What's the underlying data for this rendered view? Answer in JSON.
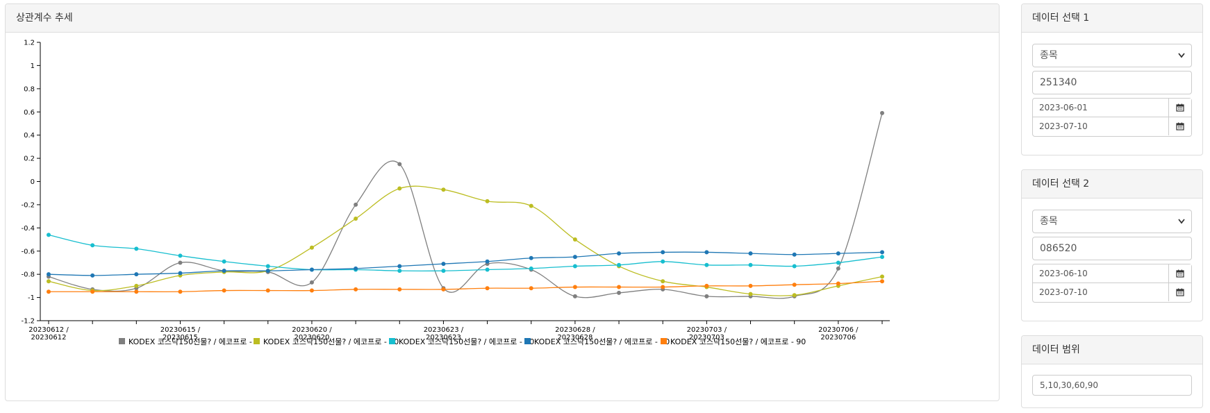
{
  "chart_panel": {
    "title": "상관계수 추세"
  },
  "panel1": {
    "title": "데이터 선택 1",
    "select_value": "종목",
    "code": "251340",
    "date_from": "2023-06-01",
    "date_to": "2023-07-10"
  },
  "panel2": {
    "title": "데이터 선택 2",
    "select_value": "종목",
    "code": "086520",
    "date_from": "2023-06-10",
    "date_to": "2023-07-10"
  },
  "panel3": {
    "title": "데이터 범위",
    "range": "5,10,30,60,90"
  },
  "icons": {
    "select": "chevron-down-icon",
    "date": "calendar-icon"
  },
  "chart_data": {
    "type": "line",
    "ylim": [
      -1.2,
      1.2
    ],
    "yticks": [
      "1.2",
      "1",
      "0.8",
      "0.6",
      "0.4",
      "0.2",
      "0",
      "-0.2",
      "-0.4",
      "-0.6",
      "-0.8",
      "-1",
      "-1.2"
    ],
    "x_labels": [
      {
        "index": 0,
        "line1": "20230612 /",
        "line2": "20230612"
      },
      {
        "index": 3,
        "line1": "20230615 /",
        "line2": "20230615"
      },
      {
        "index": 6,
        "line1": "20230620 /",
        "line2": "20230620"
      },
      {
        "index": 9,
        "line1": "20230623 /",
        "line2": "20230623"
      },
      {
        "index": 12,
        "line1": "20230628 /",
        "line2": "20230628"
      },
      {
        "index": 15,
        "line1": "20230703 /",
        "line2": "20230703"
      },
      {
        "index": 18,
        "line1": "20230706 /",
        "line2": "20230706"
      }
    ],
    "num_points": 20,
    "series": [
      {
        "name": "KODEX 코스닥150선물? / 에코프로 - 5",
        "color": "#7f7f7f",
        "values": [
          -0.82,
          -0.93,
          -0.92,
          -0.7,
          -0.77,
          -0.78,
          -0.87,
          -0.2,
          0.15,
          -0.92,
          -0.71,
          -0.76,
          -0.99,
          -0.96,
          -0.93,
          -0.99,
          -0.99,
          -0.99,
          -0.75,
          0.59
        ]
      },
      {
        "name": "KODEX 코스닥150선물? / 에코프로 - 10",
        "color": "#bcbd22",
        "values": [
          -0.86,
          -0.94,
          -0.9,
          -0.81,
          -0.78,
          -0.77,
          -0.57,
          -0.32,
          -0.06,
          -0.07,
          -0.17,
          -0.21,
          -0.5,
          -0.73,
          -0.86,
          -0.91,
          -0.97,
          -0.98,
          -0.9,
          -0.82
        ]
      },
      {
        "name": "KODEX 코스닥150선물? / 에코프로 - 30",
        "color": "#17becf",
        "values": [
          -0.46,
          -0.55,
          -0.58,
          -0.64,
          -0.69,
          -0.73,
          -0.76,
          -0.76,
          -0.77,
          -0.77,
          -0.76,
          -0.75,
          -0.73,
          -0.72,
          -0.69,
          -0.72,
          -0.72,
          -0.73,
          -0.7,
          -0.65
        ]
      },
      {
        "name": "KODEX 코스닥150선물? / 에코프로 - 60",
        "color": "#1f77b4",
        "values": [
          -0.8,
          -0.81,
          -0.8,
          -0.79,
          -0.77,
          -0.77,
          -0.76,
          -0.75,
          -0.73,
          -0.71,
          -0.69,
          -0.66,
          -0.65,
          -0.62,
          -0.61,
          -0.61,
          -0.62,
          -0.63,
          -0.62,
          -0.61
        ]
      },
      {
        "name": "KODEX 코스닥150선물? / 에코프로 - 90",
        "color": "#ff7f0e",
        "values": [
          -0.95,
          -0.95,
          -0.95,
          -0.95,
          -0.94,
          -0.94,
          -0.94,
          -0.93,
          -0.93,
          -0.93,
          -0.92,
          -0.92,
          -0.91,
          -0.91,
          -0.91,
          -0.9,
          -0.9,
          -0.89,
          -0.88,
          -0.86
        ]
      }
    ]
  }
}
